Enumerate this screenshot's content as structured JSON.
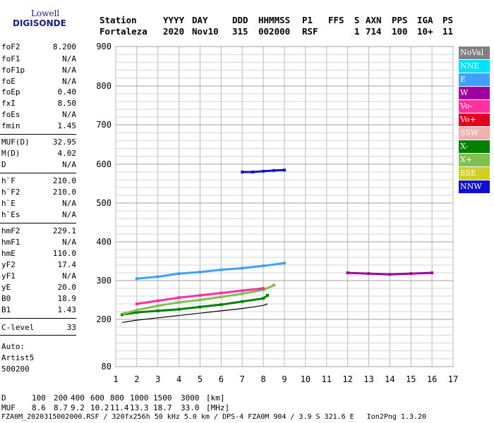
{
  "logo": {
    "line1": "Lowell",
    "line2": "DIGISONDE"
  },
  "header": {
    "labels": [
      "Station",
      "YYYY",
      "DAY",
      "DDD",
      "HHMMSS",
      "P1",
      "FFS",
      "S",
      "AXN",
      "PPS",
      "IGA",
      "PS"
    ],
    "values": [
      "Fortaleza",
      "2020",
      "Nov10",
      "315",
      "002000",
      "RSF",
      "",
      "1",
      "714",
      "100",
      "10+",
      "11"
    ]
  },
  "params": [
    {
      "k": "foF2",
      "v": "8.200"
    },
    {
      "k": "foF1",
      "v": "N/A"
    },
    {
      "k": "foF1p",
      "v": "N/A"
    },
    {
      "k": "foE",
      "v": "N/A"
    },
    {
      "k": "foEp",
      "v": "0.40"
    },
    {
      "k": "fxI",
      "v": "8.50"
    },
    {
      "k": "foEs",
      "v": "N/A"
    },
    {
      "k": "fmin",
      "v": "1.45"
    },
    {
      "k": "MUF(D)",
      "v": "32.95"
    },
    {
      "k": "M(D)",
      "v": "4.02"
    },
    {
      "k": "D",
      "v": "N/A"
    },
    {
      "k": "h`F",
      "v": "210.0"
    },
    {
      "k": "h`F2",
      "v": "210.0"
    },
    {
      "k": "h`E",
      "v": "N/A"
    },
    {
      "k": "h`Es",
      "v": "N/A"
    },
    {
      "k": "hmF2",
      "v": "229.1"
    },
    {
      "k": "hmF1",
      "v": "N/A"
    },
    {
      "k": "hmE",
      "v": "110.0"
    },
    {
      "k": "yF2",
      "v": "17.4"
    },
    {
      "k": "yF1",
      "v": "N/A"
    },
    {
      "k": "yE",
      "v": "20.0"
    },
    {
      "k": "B0",
      "v": "18.9"
    },
    {
      "k": "B1",
      "v": "1.43"
    },
    {
      "k": "C-level",
      "v": "33"
    }
  ],
  "auto": [
    "Auto:",
    "Artist5",
    "500200"
  ],
  "legend": [
    {
      "label": "NoVal",
      "color": "#808080"
    },
    {
      "label": "NNE",
      "color": "#00e0ff"
    },
    {
      "label": "E",
      "color": "#40a0ff"
    },
    {
      "label": "W",
      "color": "#a000a0"
    },
    {
      "label": "Vo-",
      "color": "#ff30a0"
    },
    {
      "label": "Vo+",
      "color": "#e00020"
    },
    {
      "label": "SSW",
      "color": "#f0b0b0"
    },
    {
      "label": "X-",
      "color": "#008000"
    },
    {
      "label": "X+",
      "color": "#80c050"
    },
    {
      "label": "SSE",
      "color": "#d0d020"
    },
    {
      "label": "NNW",
      "color": "#1010d0"
    }
  ],
  "footer": {
    "d_label": "D",
    "d_values": [
      "100",
      "200",
      "400",
      "600",
      "800",
      "1000",
      "1500",
      "3000"
    ],
    "d_unit": "[km]",
    "muf_label": "MUF",
    "muf_values": [
      "8.6",
      "8.7",
      "9.2",
      "10.2",
      "11.4",
      "13.3",
      "18.7",
      "33.0"
    ],
    "muf_unit": "[MHz]",
    "file_line": "FZA0M_2020315002000.RSF / 320fx256h 50 kHz 5.0 km / DPS-4 FZA0M 904 / 3.9 S 321.6 E   Ion2Png 1.3.20"
  },
  "chart_data": {
    "type": "scatter",
    "title": "",
    "xlabel": "",
    "ylabel": "",
    "xlim": [
      1,
      17
    ],
    "ylim": [
      80,
      900
    ],
    "x_ticks": [
      1,
      2,
      3,
      4,
      5,
      6,
      7,
      8,
      9,
      10,
      11,
      12,
      13,
      14,
      15,
      16,
      17
    ],
    "y_ticks": [
      80,
      200,
      300,
      400,
      500,
      600,
      700,
      800,
      900
    ],
    "grid": true,
    "legend_position": "right",
    "traces": [
      {
        "name": "X-",
        "x": [
          1.3,
          2.0,
          3.0,
          4.0,
          5.0,
          6.0,
          7.0,
          8.0,
          8.2
        ],
        "y": [
          212,
          218,
          222,
          226,
          232,
          238,
          246,
          254,
          262
        ]
      },
      {
        "name": "X+",
        "x": [
          1.4,
          2.0,
          3.0,
          4.0,
          5.0,
          6.0,
          7.0,
          8.0,
          8.5
        ],
        "y": [
          215,
          224,
          235,
          244,
          250,
          258,
          266,
          276,
          288
        ]
      },
      {
        "name": "E",
        "x": [
          2.0,
          3.0,
          4.0,
          5.0,
          6.0,
          7.0,
          8.0,
          9.0
        ],
        "y": [
          305,
          310,
          318,
          322,
          328,
          332,
          338,
          345
        ]
      },
      {
        "name": "NNW",
        "x": [
          7.0,
          7.5,
          8.0,
          8.5,
          9.0
        ],
        "y": [
          580,
          580,
          582,
          584,
          585
        ]
      },
      {
        "name": "Vo-",
        "x": [
          2.0,
          3.0,
          4.0,
          5.0,
          6.0,
          7.0,
          8.0
        ],
        "y": [
          240,
          248,
          256,
          262,
          268,
          274,
          280
        ]
      },
      {
        "name": "W",
        "x": [
          12.0,
          13.0,
          14.0,
          15.0,
          16.0
        ],
        "y": [
          320,
          318,
          316,
          318,
          320
        ]
      }
    ],
    "model_curve": {
      "x": [
        1.3,
        2,
        3,
        4,
        5,
        6,
        7,
        8,
        8.2
      ],
      "y": [
        192,
        198,
        204,
        210,
        216,
        222,
        228,
        236,
        240
      ]
    }
  }
}
